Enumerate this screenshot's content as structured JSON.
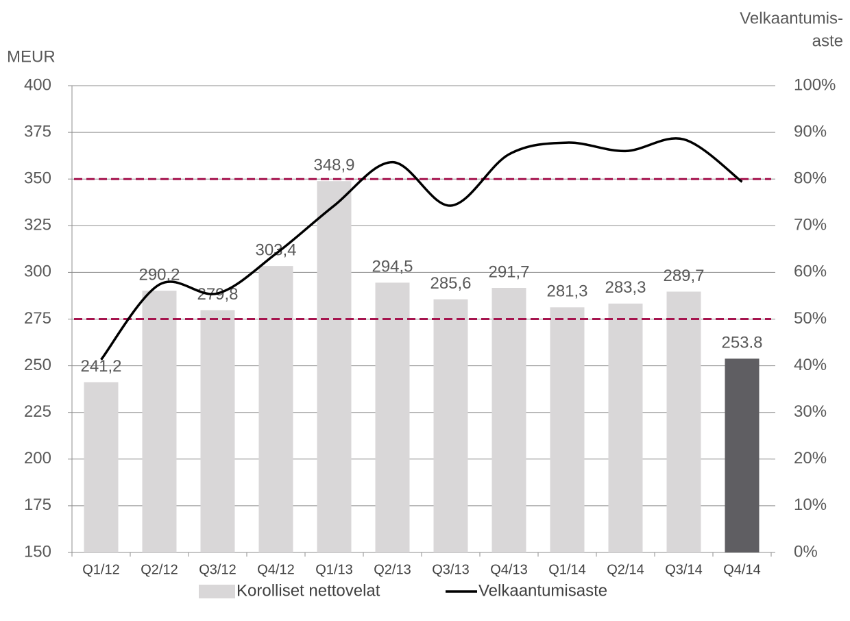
{
  "chart_data": {
    "type": "bar",
    "y_label": "MEUR",
    "y2_label": [
      "Velkaantumis-",
      "aste"
    ],
    "categories": [
      "Q1/12",
      "Q2/12",
      "Q3/12",
      "Q4/12",
      "Q1/13",
      "Q2/13",
      "Q3/13",
      "Q4/13",
      "Q1/14",
      "Q2/14",
      "Q3/14",
      "Q4/14"
    ],
    "series": [
      {
        "name": "Korolliset nettovelat",
        "type": "bar",
        "colors": [
          "#d9d7d8",
          "#d9d7d8",
          "#d9d7d8",
          "#d9d7d8",
          "#d9d7d8",
          "#d9d7d8",
          "#d9d7d8",
          "#d9d7d8",
          "#d9d7d8",
          "#d9d7d8",
          "#d9d7d8",
          "#5f5e62"
        ],
        "values": [
          241.2,
          290.2,
          279.8,
          303.4,
          348.9,
          294.5,
          285.6,
          291.7,
          281.3,
          283.3,
          289.7,
          253.8
        ],
        "value_labels": [
          "241,2",
          "290,2",
          "279,8",
          "303,4",
          "348,9",
          "294,5",
          "285,6",
          "291,7",
          "281,3",
          "283,3",
          "289,7",
          "253.8"
        ]
      },
      {
        "name": "Velkaantumisaste",
        "type": "line",
        "axis": "y2",
        "color": "#000000",
        "values": [
          41.3,
          57.4,
          55.5,
          64,
          74.3,
          83.6,
          74.3,
          85.3,
          87.8,
          86,
          88.5,
          79.4
        ]
      }
    ],
    "reference_lines": [
      {
        "value": 80,
        "axis": "y2",
        "color": "#a6144e",
        "dashed": true
      },
      {
        "value": 50,
        "axis": "y2",
        "color": "#a6144e",
        "dashed": true
      }
    ],
    "ylim": [
      150,
      400
    ],
    "yticks": [
      150,
      175,
      200,
      225,
      250,
      275,
      300,
      325,
      350,
      375,
      400
    ],
    "y2lim": [
      0,
      100
    ],
    "y2ticks": [
      {
        "value": 0,
        "label": "0%"
      },
      {
        "value": 10,
        "label": "10%"
      },
      {
        "value": 20,
        "label": "20%"
      },
      {
        "value": 30,
        "label": "30%"
      },
      {
        "value": 40,
        "label": "40%"
      },
      {
        "value": 50,
        "label": "50%"
      },
      {
        "value": 60,
        "label": "60%"
      },
      {
        "value": 70,
        "label": "70%"
      },
      {
        "value": 80,
        "label": "80%"
      },
      {
        "value": 90,
        "label": "90%"
      },
      {
        "value": 100,
        "label": "100%"
      }
    ],
    "grid": true
  }
}
